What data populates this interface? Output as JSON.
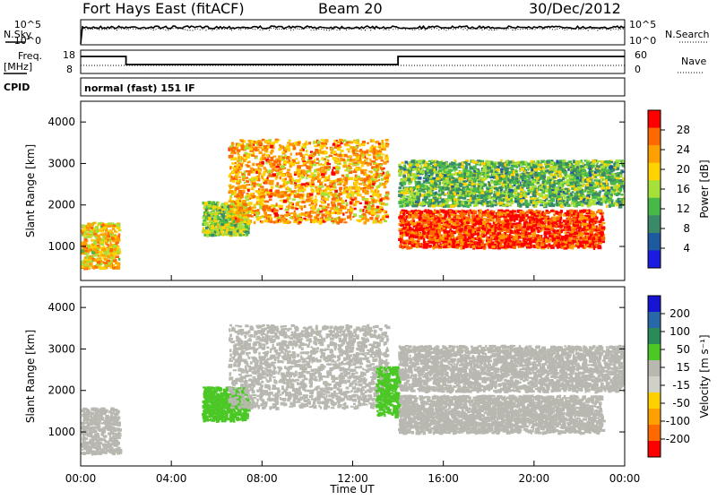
{
  "header": {
    "station": "Fort Hays East (fitACF)",
    "beam": "Beam 20",
    "date": "30/Dec/2012"
  },
  "strips": {
    "nsky_label": "N.Sky",
    "nsearch_label": "N.Search",
    "freq_label_line1": "Freq.",
    "freq_label_line2": "[MHz]",
    "nave_label": "Nave",
    "cpid_label": "CPID",
    "cpid_value": "normal (fast) 151 IF",
    "noise_ticks_left": [
      "10^5",
      "10^0"
    ],
    "noise_ticks_right": [
      "10^5",
      "10^0"
    ],
    "freq_ticks_left": [
      "18",
      "8"
    ],
    "nave_ticks_right": [
      "60",
      "0"
    ]
  },
  "power_colorbar": {
    "title": "Power [dB]",
    "ticks": [
      "28",
      "24",
      "20",
      "16",
      "12",
      "8",
      "4"
    ],
    "colors": [
      "#ff0000",
      "#ff6a00",
      "#ff9f00",
      "#ffd200",
      "#a6e03a",
      "#48b848",
      "#3a8a6a",
      "#1e5aa0",
      "#1a1ae0"
    ]
  },
  "velocity_colorbar": {
    "title": "Velocity [m s⁻¹]",
    "ticks": [
      "200",
      "100",
      "50",
      "15",
      "-15",
      "-50",
      "-100",
      "-200"
    ],
    "colors": [
      "#1414d2",
      "#2868a8",
      "#2a8a5a",
      "#4cc826",
      "#b8b8b0",
      "#d0d0c8",
      "#ffd000",
      "#ffa000",
      "#ff6a00",
      "#ff0000"
    ]
  },
  "time_axis": {
    "label": "Time UT",
    "ticks": [
      "00:00",
      "04:00",
      "08:00",
      "12:00",
      "16:00",
      "20:00",
      "00:00"
    ]
  },
  "range_axis": {
    "label": "Slant Range [km]",
    "ticks": [
      "1000",
      "2000",
      "3000",
      "4000"
    ]
  },
  "chart_data": [
    {
      "type": "heatmap",
      "title": "Power",
      "xlabel": "Time UT",
      "ylabel": "Slant Range [km]",
      "xlim": [
        "00:00",
        "24:00"
      ],
      "ylim": [
        180,
        4500
      ],
      "colorbar": "Power [dB]",
      "color_range": [
        0,
        30
      ],
      "echo_regions": [
        {
          "start": "00:00",
          "end": "01:40",
          "range_low": 500,
          "range_high": 1600,
          "power_db": 20
        },
        {
          "start": "05:20",
          "end": "07:20",
          "range_low": 1300,
          "range_high": 2100,
          "power_db": 14
        },
        {
          "start": "06:30",
          "end": "13:30",
          "range_low": 1600,
          "range_high": 3600,
          "power_db": 22
        },
        {
          "start": "14:00",
          "end": "23:00",
          "range_low": 1000,
          "range_high": 1900,
          "power_db": 28
        },
        {
          "start": "14:00",
          "end": "24:00",
          "range_low": 2000,
          "range_high": 3100,
          "power_db": 12
        }
      ]
    },
    {
      "type": "heatmap",
      "title": "Velocity",
      "xlabel": "Time UT",
      "ylabel": "Slant Range [km]",
      "xlim": [
        "00:00",
        "24:00"
      ],
      "ylim": [
        180,
        4500
      ],
      "colorbar": "Velocity [m s⁻¹]",
      "color_range": [
        -200,
        200
      ],
      "echo_regions": [
        {
          "start": "00:00",
          "end": "01:40",
          "range_low": 500,
          "range_high": 1600,
          "velocity": 0
        },
        {
          "start": "05:20",
          "end": "07:20",
          "range_low": 1300,
          "range_high": 2100,
          "velocity": 60
        },
        {
          "start": "06:30",
          "end": "13:30",
          "range_low": 1600,
          "range_high": 3600,
          "velocity": 0
        },
        {
          "start": "13:00",
          "end": "14:00",
          "range_low": 1400,
          "range_high": 2600,
          "velocity": 60
        },
        {
          "start": "14:00",
          "end": "23:00",
          "range_low": 1000,
          "range_high": 1900,
          "velocity": 0
        },
        {
          "start": "14:00",
          "end": "24:00",
          "range_low": 2000,
          "range_high": 3100,
          "velocity": 0
        }
      ]
    }
  ]
}
